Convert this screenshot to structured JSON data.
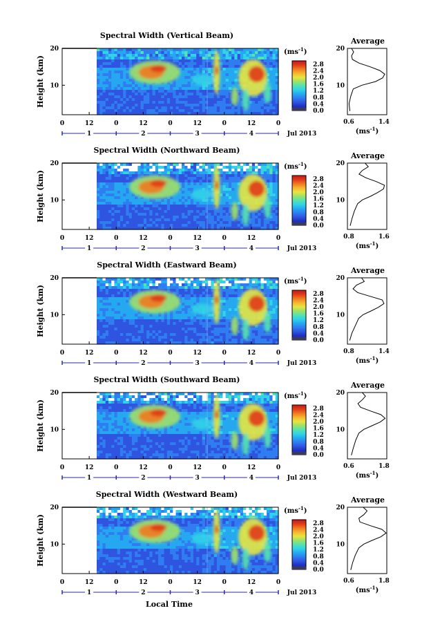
{
  "figure": {
    "xlabel": "Local Time",
    "date_label": "Jul 2013",
    "colorbar_unit": "(ms",
    "colorbar_unit_exp": "-1",
    "avg_unit": "(ms",
    "avg_unit_exp": "-1"
  },
  "colors": {
    "colormap": [
      "#3a3a8c",
      "#1f2fbf",
      "#2f55e0",
      "#2f7df0",
      "#25a8f0",
      "#32d2e8",
      "#55e3b0",
      "#9ee06a",
      "#e6e640",
      "#f5b530",
      "#f07a20",
      "#e03a18",
      "#c4181c"
    ],
    "day_axis": "#2a2aa8"
  },
  "chart_data": [
    {
      "type": "heatmap",
      "title": "Spectral Width (Vertical Beam)",
      "ylabel": "Height (km)",
      "ylim": [
        2,
        20
      ],
      "yticks": [
        "20",
        "10"
      ],
      "xticks": [
        "0",
        "12",
        "0",
        "12",
        "0",
        "12",
        "0",
        "12",
        "0"
      ],
      "day_ticks": [
        "1",
        "2",
        "3",
        "4"
      ],
      "colorbar": {
        "ticks": [
          "2.8",
          "2.4",
          "2.0",
          "1.6",
          "1.2",
          "0.8",
          "0.4",
          "0.0"
        ],
        "range": [
          0.0,
          3.0
        ]
      },
      "average": {
        "title": "Average",
        "xticks": [
          "0.6",
          "1.4"
        ],
        "yticks": [
          "20",
          "10"
        ],
        "xlim": [
          0.6,
          1.55
        ],
        "height_km": [
          3,
          5,
          7,
          9,
          10,
          11,
          12,
          13,
          14,
          15,
          16,
          17,
          18,
          19,
          20
        ],
        "values": [
          0.66,
          0.64,
          0.68,
          0.74,
          0.95,
          1.28,
          1.45,
          1.5,
          1.38,
          1.15,
          0.88,
          0.72,
          0.7,
          0.75,
          0.7
        ]
      }
    },
    {
      "type": "heatmap",
      "title": "Spectral Width (Northward Beam)",
      "ylabel": "Height (km)",
      "ylim": [
        2,
        20
      ],
      "yticks": [
        "20",
        "10"
      ],
      "xticks": [
        "0",
        "12",
        "0",
        "12",
        "0",
        "12",
        "0",
        "12",
        "0"
      ],
      "day_ticks": [
        "1",
        "2",
        "3",
        "4"
      ],
      "colorbar": {
        "ticks": [
          "2.8",
          "2.4",
          "2.0",
          "1.6",
          "1.2",
          "0.8",
          "0.4",
          "0.0"
        ],
        "range": [
          0.0,
          3.0
        ]
      },
      "average": {
        "title": "Average",
        "xticks": [
          "0.8",
          "1.6"
        ],
        "yticks": [
          "20",
          "10"
        ],
        "xlim": [
          0.8,
          1.65
        ],
        "height_km": [
          3,
          5,
          7,
          9,
          10,
          11,
          12,
          13,
          14,
          15,
          16,
          17,
          18,
          19,
          20
        ],
        "values": [
          0.86,
          0.9,
          0.95,
          1.02,
          1.12,
          1.3,
          1.45,
          1.58,
          1.6,
          1.42,
          1.2,
          1.05,
          1.12,
          1.25,
          1.18
        ]
      }
    },
    {
      "type": "heatmap",
      "title": "Spectral Width (Eastward Beam)",
      "ylabel": "Height (km)",
      "ylim": [
        2,
        20
      ],
      "yticks": [
        "20",
        "10"
      ],
      "xticks": [
        "0",
        "12",
        "0",
        "12",
        "0",
        "12",
        "0",
        "12",
        "0"
      ],
      "day_ticks": [
        "1",
        "2",
        "3",
        "4"
      ],
      "colorbar": {
        "ticks": [
          "2.8",
          "2.4",
          "2.0",
          "1.6",
          "1.2",
          "0.8",
          "0.4",
          "0.0"
        ],
        "range": [
          0.0,
          3.0
        ]
      },
      "average": {
        "title": "Average",
        "xticks": [
          "0.8",
          "1.4"
        ],
        "yticks": [
          "20",
          "10"
        ],
        "xlim": [
          0.8,
          1.5
        ],
        "height_km": [
          3,
          5,
          7,
          9,
          10,
          11,
          12,
          13,
          14,
          15,
          16,
          17,
          18,
          19,
          20
        ],
        "values": [
          0.84,
          0.88,
          0.94,
          1.0,
          1.08,
          1.22,
          1.35,
          1.45,
          1.42,
          1.2,
          0.98,
          0.9,
          0.96,
          1.1,
          1.05
        ]
      }
    },
    {
      "type": "heatmap",
      "title": "Spectral Width (Southward Beam)",
      "ylabel": "Height (km)",
      "ylim": [
        2,
        20
      ],
      "yticks": [
        "20",
        "10"
      ],
      "xticks": [
        "0",
        "12",
        "0",
        "12",
        "0",
        "12",
        "0",
        "12",
        "0"
      ],
      "day_ticks": [
        "1",
        "2",
        "3",
        "4"
      ],
      "colorbar": {
        "ticks": [
          "2.8",
          "2.4",
          "2.0",
          "1.6",
          "1.2",
          "0.8",
          "0.4",
          "0.0"
        ],
        "range": [
          0.0,
          3.0
        ]
      },
      "average": {
        "title": "Average",
        "xticks": [
          "0.6",
          "1.8"
        ],
        "yticks": [
          "20",
          "10"
        ],
        "xlim": [
          0.6,
          1.8
        ],
        "height_km": [
          3,
          5,
          7,
          9,
          10,
          11,
          12,
          13,
          14,
          15,
          16,
          17,
          18,
          19,
          20
        ],
        "values": [
          0.72,
          0.78,
          0.85,
          0.95,
          1.1,
          1.35,
          1.6,
          1.75,
          1.62,
          1.3,
          1.0,
          0.92,
          1.05,
          1.15,
          1.05
        ]
      }
    },
    {
      "type": "heatmap",
      "title": "Spectral Width (Westward Beam)",
      "ylabel": "Height (km)",
      "ylim": [
        2,
        20
      ],
      "yticks": [
        "20",
        "10"
      ],
      "xticks": [
        "0",
        "12",
        "0",
        "12",
        "0",
        "12",
        "0",
        "12",
        "0"
      ],
      "day_ticks": [
        "1",
        "2",
        "3",
        "4"
      ],
      "colorbar": {
        "ticks": [
          "2.8",
          "2.4",
          "2.0",
          "1.6",
          "1.2",
          "0.8",
          "0.4",
          "0.0"
        ],
        "range": [
          0.0,
          3.0
        ]
      },
      "average": {
        "title": "Average",
        "xticks": [
          "0.6",
          "1.8"
        ],
        "yticks": [
          "20",
          "10"
        ],
        "xlim": [
          0.6,
          1.8
        ],
        "height_km": [
          3,
          5,
          7,
          9,
          10,
          11,
          12,
          13,
          14,
          15,
          16,
          17,
          18,
          19,
          20
        ],
        "values": [
          0.7,
          0.76,
          0.84,
          0.95,
          1.1,
          1.35,
          1.62,
          1.78,
          1.65,
          1.3,
          0.98,
          0.95,
          1.1,
          1.2,
          1.08
        ]
      }
    }
  ]
}
